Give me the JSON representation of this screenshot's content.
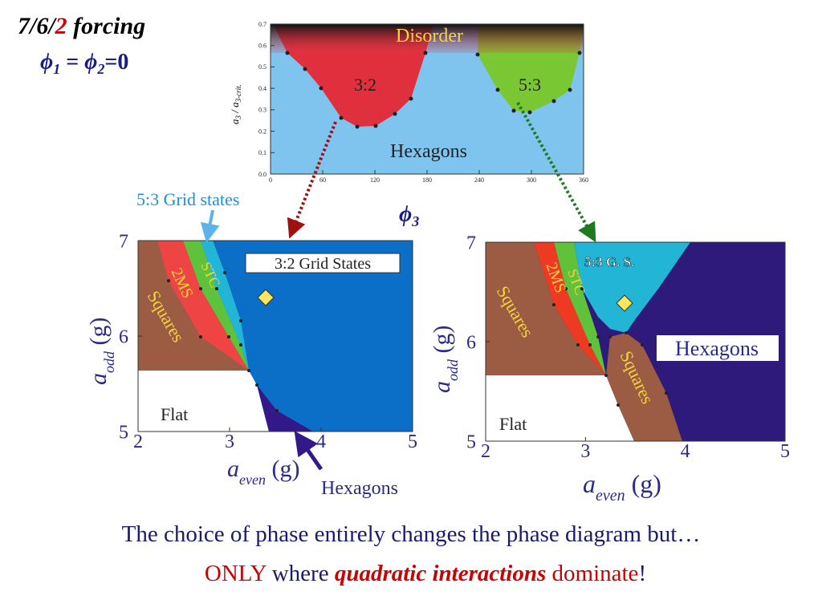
{
  "heading": {
    "ratio_start": "7/6/",
    "ratio_mark": "2",
    "ratio_end": " forcing",
    "phi": "ϕ",
    "sub1": "1",
    "eq": " = ",
    "sub2": "2",
    "rest": "=0"
  },
  "phase_diagrams": [
    {
      "xlim": [
        0,
        360
      ],
      "xticks": [
        0,
        60,
        120,
        180,
        240,
        300,
        360
      ],
      "ylim": [
        0,
        0.7
      ],
      "yticks": [
        {
          "value": 0,
          "label": "0.0"
        },
        0.1,
        0.2,
        0.3,
        0.4,
        0.5,
        0.6,
        0.7
      ],
      "ylabel": {
        "main": "a",
        "sub": "3",
        "mid": " / a",
        "sub2": "3-crit."
      },
      "xlabel": {
        "main": "ϕ",
        "sub": "3"
      },
      "regions": [
        "Disorder",
        "3:2",
        "5:3",
        "Hexagons"
      ]
    },
    {
      "xlim": [
        2,
        5
      ],
      "xticks": [
        2,
        3,
        4,
        5
      ],
      "ylim": [
        5,
        7
      ],
      "yticks": [
        5,
        6,
        7
      ],
      "xlabel": {
        "main": "a",
        "sub": "even",
        "unit": " (g)"
      },
      "ylabel": {
        "main": "a",
        "sub": "odd",
        "unit": " (g)"
      },
      "regions": [
        "Squares",
        "2MS",
        "STC",
        "3:2 Grid States",
        "Flat"
      ],
      "callouts": [
        "5:3 Grid states",
        "Hexagons"
      ]
    },
    {
      "xlim": [
        2,
        5
      ],
      "xticks": [
        2,
        3,
        4,
        5
      ],
      "ylim": [
        5,
        7
      ],
      "yticks": [
        5,
        6,
        7
      ],
      "xlabel": {
        "main": "a",
        "sub": "even",
        "unit": " (g)"
      },
      "ylabel": {
        "main": "a",
        "sub": "odd",
        "unit": " (g)"
      },
      "regions": [
        "Squares",
        "2MS",
        "STC",
        "5:3 G. S.",
        "Hexagons",
        "Squares",
        "Flat"
      ]
    }
  ],
  "footer": {
    "line1": "The choice of phase entirely changes the phase diagram but…",
    "only": "ONLY",
    "where": " where ",
    "quad": "quadratic interactions",
    "dominate": " dominate",
    "bang": "!"
  }
}
